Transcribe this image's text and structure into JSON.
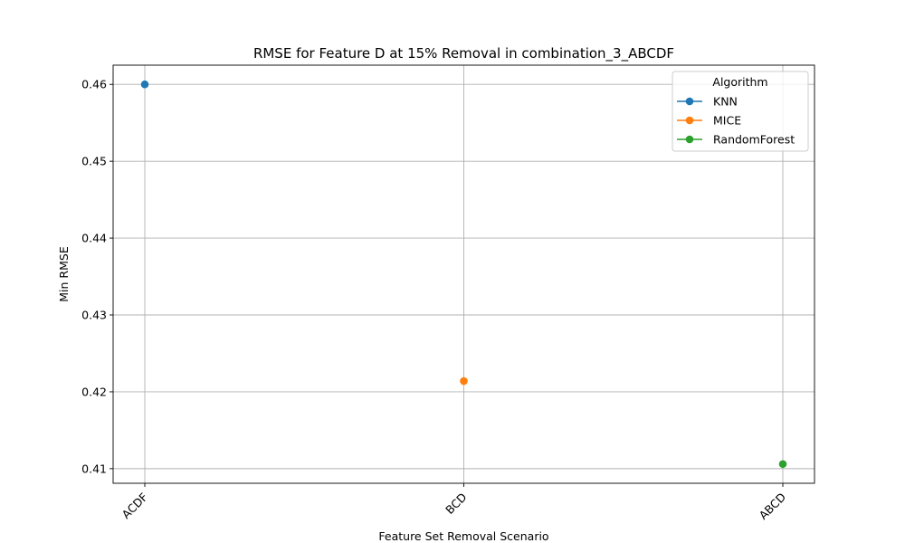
{
  "chart_data": {
    "type": "line",
    "title": "RMSE for Feature D at 15% Removal in combination_3_ABCDF",
    "xlabel": "Feature Set Removal Scenario",
    "ylabel": "Min RMSE",
    "categories": [
      "ACDF",
      "BCD",
      "ABCD"
    ],
    "ylim": [
      0.4081,
      0.4625
    ],
    "yticks": [
      0.41,
      0.42,
      0.43,
      0.44,
      0.45,
      0.46
    ],
    "ytick_labels": [
      "0.41",
      "0.42",
      "0.43",
      "0.44",
      "0.45",
      "0.46"
    ],
    "grid": true,
    "legend": {
      "title": "Algorithm",
      "placement": "top-right"
    },
    "series": [
      {
        "name": "KNN",
        "color": "#1f77b4",
        "points": [
          {
            "x": "ACDF",
            "y": 0.46
          }
        ]
      },
      {
        "name": "MICE",
        "color": "#ff7f0e",
        "points": [
          {
            "x": "BCD",
            "y": 0.4214
          }
        ]
      },
      {
        "name": "RandomForest",
        "color": "#2ca02c",
        "points": [
          {
            "x": "ABCD",
            "y": 0.4106
          }
        ]
      }
    ]
  }
}
